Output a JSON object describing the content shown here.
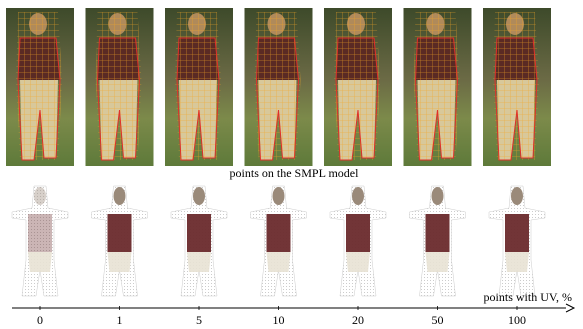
{
  "figure": {
    "row_caption": "points on the SMPL model",
    "axis_label": "points with UV, %",
    "ticks": [
      0,
      1,
      5,
      10,
      20,
      50,
      100
    ]
  }
}
